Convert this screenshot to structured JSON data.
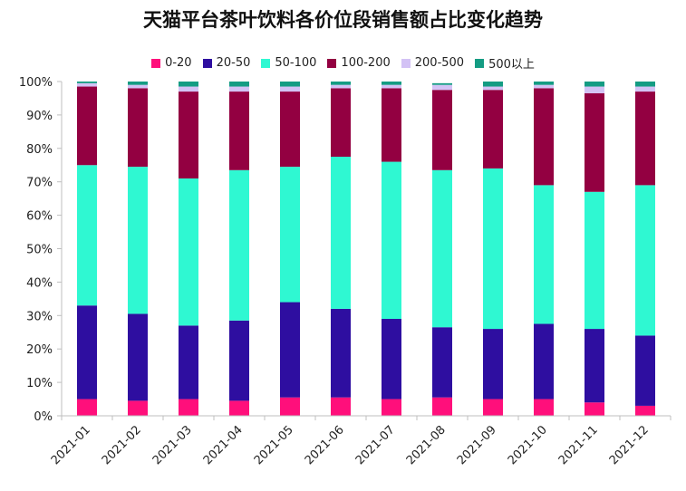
{
  "chart_data": {
    "type": "bar",
    "stacked": true,
    "title": "天猫平台茶叶饮料各价位段销售额占比变化趋势",
    "xlabel": "",
    "ylabel": "",
    "ylim": [
      0,
      100
    ],
    "yticks": [
      "0%",
      "10%",
      "20%",
      "30%",
      "40%",
      "50%",
      "60%",
      "70%",
      "80%",
      "90%",
      "100%"
    ],
    "legend_position": "top",
    "categories": [
      "2021-01",
      "2021-02",
      "2021-03",
      "2021-04",
      "2021-05",
      "2021-06",
      "2021-07",
      "2021-08",
      "2021-09",
      "2021-10",
      "2021-11",
      "2021-12"
    ],
    "series": [
      {
        "name": "0-20",
        "color": "#FF0F7B",
        "values": [
          5,
          4.5,
          5,
          4.5,
          5.5,
          5.5,
          5,
          5.5,
          5,
          5,
          4,
          3
        ]
      },
      {
        "name": "20-50",
        "color": "#2E0EA0",
        "values": [
          28,
          26,
          22,
          24,
          28.5,
          26.5,
          24,
          21,
          21,
          22.5,
          22,
          21
        ]
      },
      {
        "name": "50-100",
        "color": "#2FF8D2",
        "values": [
          42,
          44,
          44,
          45,
          40.5,
          45.5,
          47,
          47,
          48,
          41.5,
          41,
          45
        ]
      },
      {
        "name": "100-200",
        "color": "#930041",
        "values": [
          23.5,
          23.5,
          26,
          23.5,
          22.5,
          20.5,
          22,
          24,
          23.5,
          29,
          29.5,
          28
        ]
      },
      {
        "name": "200-500",
        "color": "#D3C2F5",
        "values": [
          1,
          1,
          1.5,
          1.5,
          1.5,
          1,
          1,
          1.5,
          1,
          1,
          2,
          1.5
        ]
      },
      {
        "name": "500以上",
        "color": "#149C83",
        "values": [
          0.5,
          1,
          1.5,
          1.5,
          1.5,
          1,
          1,
          0.5,
          1.5,
          1,
          1.5,
          1.5
        ]
      }
    ]
  }
}
